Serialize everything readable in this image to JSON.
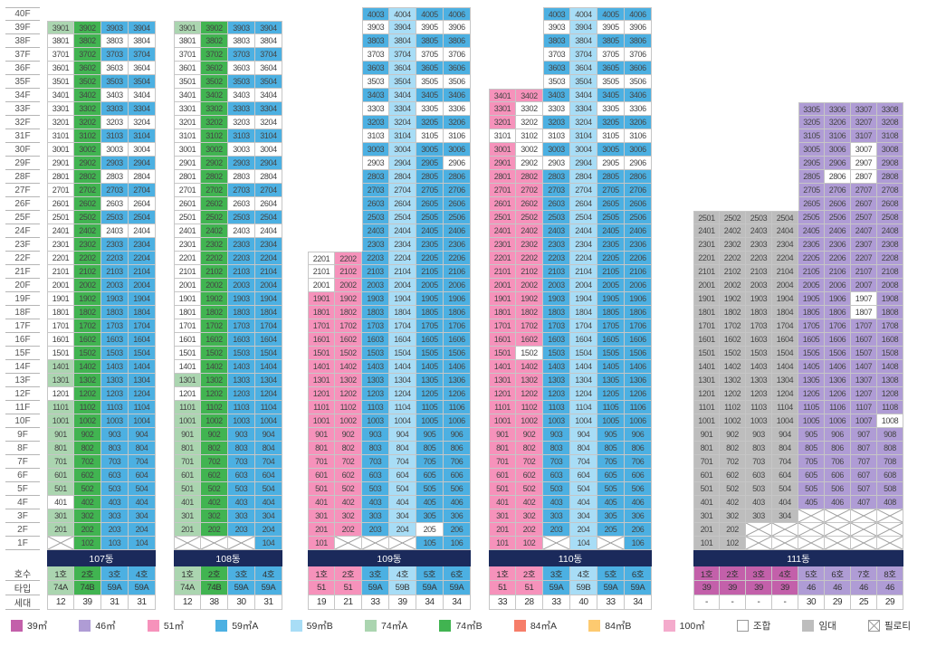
{
  "palette": {
    "p": {
      "label": "39㎡",
      "color": "#c360aa"
    },
    "v": {
      "label": "46㎡",
      "color": "#af9cd5"
    },
    "k": {
      "label": "51㎡",
      "color": "#f692bb"
    },
    "A": {
      "label": "59㎡A",
      "color": "#4cb0e2"
    },
    "B": {
      "label": "59㎡B",
      "color": "#a8ddf6"
    },
    "g": {
      "label": "74㎡A",
      "color": "#abd5b0"
    },
    "G": {
      "label": "74㎡B",
      "color": "#41b451"
    },
    "r": {
      "label": "84㎡A",
      "color": "#f67d69"
    },
    "y": {
      "label": "84㎡B",
      "color": "#fdca70"
    },
    "h": {
      "label": "100㎡",
      "color": "#f4abcc",
      "dotted": true
    },
    "w": {
      "label": "조합",
      "color": "#ffffff",
      "bordered": true
    },
    "L": {
      "label": "임대",
      "color": "#bdbdbd"
    },
    "X": {
      "label": "필로티",
      "color": "#ffffff",
      "pilotis": true,
      "bordered": true
    }
  },
  "legend_order": [
    "p",
    "v",
    "k",
    "A",
    "B",
    "g",
    "G",
    "r",
    "y",
    "h",
    "w",
    "L",
    "X"
  ],
  "axis": {
    "floor_count": 40,
    "floor_suffix": "F",
    "row_labels": [
      "호수",
      "타입",
      "세대"
    ]
  },
  "towers": [
    {
      "name": "107동",
      "top_floor": 39,
      "cols": [
        {
          "ho": "1호",
          "type": "74A",
          "code": "g",
          "count": "12"
        },
        {
          "ho": "2호",
          "type": "74B",
          "code": "G",
          "count": "39"
        },
        {
          "ho": "3호",
          "type": "59A",
          "code": "A",
          "count": "31"
        },
        {
          "ho": "4호",
          "type": "59A",
          "code": "A",
          "count": "31"
        }
      ],
      "rows": [
        "gGAA",
        "wGww",
        "wGAA",
        "wGww",
        "wGAA",
        "wGww",
        "wGAA",
        "wGww",
        "wGAA",
        "wGww",
        "wGAA",
        "wGww",
        "wGAA",
        "wGww",
        "wGAA",
        "wGww",
        "wGAA",
        "wGAA",
        "wGAA",
        "wGAA",
        "wGAA",
        "wGAA",
        "wGAA",
        "wGAA",
        "wGAA",
        "gGAA",
        "gGAA",
        "wGAA",
        "gGAA",
        "gGAA",
        "gGAA",
        "gGAA",
        "gGAA",
        "gGAA",
        "gGAA",
        "wGAA",
        "gGAA",
        "gGAA",
        "XGAA"
      ]
    },
    {
      "name": "108동",
      "top_floor": 39,
      "cols": [
        {
          "ho": "1호",
          "type": "74A",
          "code": "g",
          "count": "12"
        },
        {
          "ho": "2호",
          "type": "74B",
          "code": "G",
          "count": "38"
        },
        {
          "ho": "3호",
          "type": "59A",
          "code": "A",
          "count": "30"
        },
        {
          "ho": "4호",
          "type": "59A",
          "code": "A",
          "count": "31"
        }
      ],
      "rows": [
        "gGAA",
        "wGww",
        "wGAA",
        "wGww",
        "wGAA",
        "wGww",
        "wGAA",
        "wGww",
        "wGAA",
        "wGww",
        "wGAA",
        "wGww",
        "wGAA",
        "wGww",
        "wGAA",
        "wGww",
        "wGAA",
        "wGAA",
        "wGAA",
        "wGAA",
        "wGAA",
        "wGAA",
        "wGAA",
        "wGAA",
        "wGAA",
        "wGAA",
        "gGAA",
        "wGAA",
        "gGAA",
        "gGAA",
        "gGAA",
        "gGAA",
        "gGAA",
        "gGAA",
        "gGAA",
        "gGAA",
        "gGAA",
        "gGAA",
        "XXXA"
      ]
    },
    {
      "name": "109동",
      "top_floor": 40,
      "cols": [
        {
          "ho": "1호",
          "type": "51",
          "code": "k",
          "count": "19"
        },
        {
          "ho": "2호",
          "type": "51",
          "code": "k",
          "count": "21"
        },
        {
          "ho": "3호",
          "type": "59A",
          "code": "A",
          "count": "33"
        },
        {
          "ho": "4호",
          "type": "59B",
          "code": "B",
          "count": "39"
        },
        {
          "ho": "5호",
          "type": "59A",
          "code": "A",
          "count": "34"
        },
        {
          "ho": "6호",
          "type": "59A",
          "code": "A",
          "count": "34"
        }
      ],
      "rows": [
        "__ABAA",
        "__wBww",
        "__ABAA",
        "__wBww",
        "__ABAA",
        "__wBww",
        "__ABAA",
        "__wBww",
        "__ABAA",
        "__wBww",
        "__ABAA",
        "__wBAw",
        "__ABAA",
        "__ABAA",
        "__ABAA",
        "__ABAA",
        "__ABAA",
        "__ABAA",
        "wkABAA",
        "wkABAA",
        "wkABAA",
        "kkABAA",
        "kkABAA",
        "kkABAA",
        "kkABAA",
        "kkABAA",
        "kkABAA",
        "kkABAA",
        "kkABAA",
        "kkABAA",
        "kkABAA",
        "kkABAA",
        "kkABAA",
        "kkABAA",
        "kkABAA",
        "kkABAA",
        "kkABAA",
        "kkABAA",
        "kkABwA",
        "kXXXAA"
      ]
    },
    {
      "name": "110동",
      "top_floor": 40,
      "cols": [
        {
          "ho": "1호",
          "type": "51",
          "code": "k",
          "count": "33"
        },
        {
          "ho": "2호",
          "type": "51",
          "code": "k",
          "count": "28"
        },
        {
          "ho": "3호",
          "type": "59A",
          "code": "A",
          "count": "33"
        },
        {
          "ho": "4호",
          "type": "59B",
          "code": "B",
          "count": "40"
        },
        {
          "ho": "5호",
          "type": "59A",
          "code": "A",
          "count": "33"
        },
        {
          "ho": "6호",
          "type": "59A",
          "code": "A",
          "count": "34"
        }
      ],
      "rows": [
        "__ABAA",
        "__wBww",
        "__ABAA",
        "__wBww",
        "__ABAA",
        "__wBww",
        "kkABAA",
        "kwwBww",
        "kwABAA",
        "wwwBww",
        "kwABAA",
        "kwwBww",
        "kkABAA",
        "kkABAA",
        "kkABAA",
        "kkABAA",
        "kkABAA",
        "kkABAA",
        "kkABAA",
        "kkABAA",
        "kkABAA",
        "kkABAA",
        "kkABAA",
        "kkABAA",
        "kkABAA",
        "kwABAA",
        "kkABAA",
        "kkABAA",
        "kkABAA",
        "kkABAA",
        "kkABAA",
        "kkABAA",
        "kkABAA",
        "kkABAA",
        "kkABAA",
        "kkABAA",
        "kkABAA",
        "kkABAA",
        "kkABAA",
        "kkXBXA"
      ]
    },
    {
      "name": "111동",
      "top_floor": 33,
      "cols": [
        {
          "ho": "1호",
          "type": "39",
          "code": "p",
          "count": "-"
        },
        {
          "ho": "2호",
          "type": "39",
          "code": "p",
          "count": "-"
        },
        {
          "ho": "3호",
          "type": "39",
          "code": "p",
          "count": "-"
        },
        {
          "ho": "4호",
          "type": "39",
          "code": "p",
          "count": "-"
        },
        {
          "ho": "5호",
          "type": "46",
          "code": "v",
          "count": "30"
        },
        {
          "ho": "6호",
          "type": "46",
          "code": "v",
          "count": "29"
        },
        {
          "ho": "7호",
          "type": "46",
          "code": "v",
          "count": "25"
        },
        {
          "ho": "8호",
          "type": "46",
          "code": "v",
          "count": "29"
        }
      ],
      "rows": [
        "____vvvv",
        "____vvvv",
        "____vvvv",
        "____vvwv",
        "____vvwv",
        "____vwwv",
        "____vvvv",
        "____vvvv",
        "LLLLvvvv",
        "LLLLvvvv",
        "LLLLvvvv",
        "LLLLvvvv",
        "LLLLvvvv",
        "LLLLvvvv",
        "LLLLvvwv",
        "LLLLvvwv",
        "LLLLvvvv",
        "LLLLvvvv",
        "LLLLvvvv",
        "LLLLvvvv",
        "LLLLvvvv",
        "LLLLvvvv",
        "LLLLvvvv",
        "LLLLvvvw",
        "LLLLvvvv",
        "LLLLvvvv",
        "LLLLvvvv",
        "LLLLvvvv",
        "LLLLvvvv",
        "LLLLvvvv",
        "LLLLXXXX",
        "LLXXXXXX",
        "LLXXXXXX"
      ]
    }
  ]
}
